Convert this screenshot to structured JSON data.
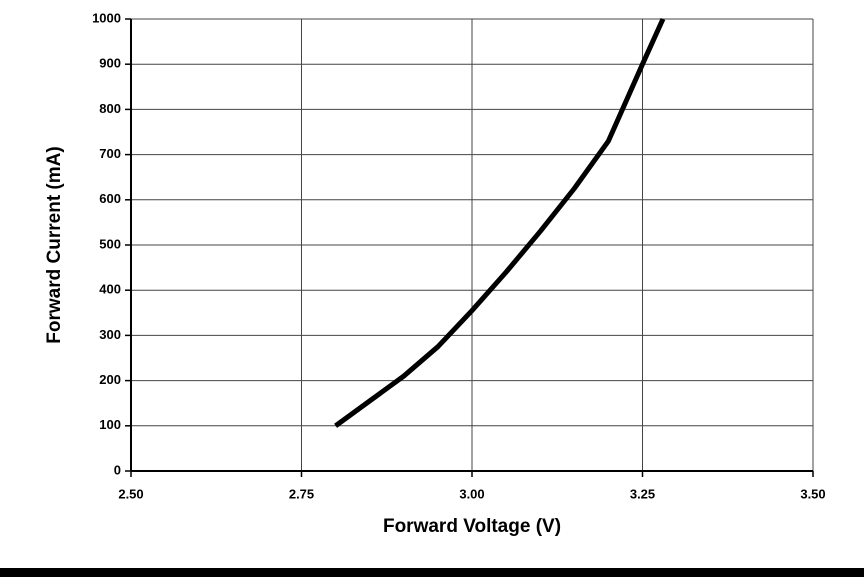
{
  "chart_data": {
    "type": "line",
    "xlabel": "Forward Voltage (V)",
    "ylabel": "Forward Current (mA)",
    "x": [
      2.8,
      2.85,
      2.9,
      2.95,
      3.0,
      3.05,
      3.1,
      3.15,
      3.2,
      3.25,
      3.28
    ],
    "values": [
      100,
      155,
      210,
      275,
      355,
      440,
      530,
      625,
      730,
      900,
      1000
    ],
    "color": "#000000",
    "xlim": [
      2.5,
      3.5
    ],
    "xticks": [
      {
        "value": 2.5,
        "label": "2.50"
      },
      {
        "value": 2.75,
        "label": "2.75"
      },
      {
        "value": 3,
        "label": "3.00"
      },
      {
        "value": 3.25,
        "label": "3.25"
      },
      {
        "value": 3.5,
        "label": "3.50"
      }
    ],
    "ylim": [
      0,
      1000
    ],
    "yticks": [
      0,
      100,
      200,
      300,
      400,
      500,
      600,
      700,
      800,
      900,
      1000
    ],
    "grid": true
  }
}
